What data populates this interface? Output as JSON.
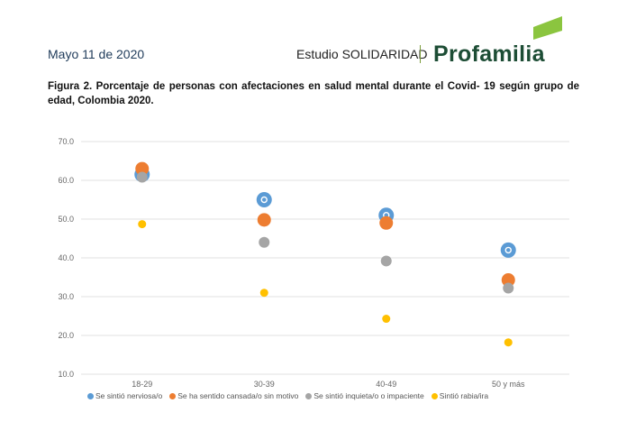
{
  "header": {
    "date": "Mayo 11 de 2020",
    "study": "Estudio SOLIDARIDAD",
    "logo": "Profamilia"
  },
  "caption": "Figura 2. Porcentaje de personas con afectaciones en salud mental durante el Covid- 19 según grupo de edad, Colombia 2020.",
  "colors": {
    "logo_green": "#1d4d35",
    "logo_mark": "#8bc53f"
  },
  "chart_data": {
    "type": "scatter",
    "title": "",
    "xlabel": "",
    "ylabel": "",
    "categories": [
      "18-29",
      "30-39",
      "40-49",
      "50 y más"
    ],
    "ylim": [
      10,
      70
    ],
    "yticks": [
      "10.0",
      "20.0",
      "30.0",
      "40.0",
      "50.0",
      "60.0",
      "70.0"
    ],
    "grid": true,
    "legend_position": "bottom",
    "series": [
      {
        "name": "Se sintió nerviosa/o",
        "color": "#5b9bd5",
        "marker": "ring",
        "values": [
          61.5,
          55.0,
          51.0,
          42.0
        ]
      },
      {
        "name": "Se ha sentido cansada/o sin motivo",
        "color": "#ed7d31",
        "marker": "large",
        "values": [
          63.0,
          49.8,
          49.0,
          34.3
        ]
      },
      {
        "name": "Se sintió inquieta/o o impaciente",
        "color": "#a5a5a5",
        "marker": "medium",
        "values": [
          60.8,
          44.0,
          39.2,
          32.2
        ]
      },
      {
        "name": "Sintió rabia/ira",
        "color": "#ffc000",
        "marker": "small",
        "values": [
          48.7,
          31.0,
          24.3,
          18.2
        ]
      }
    ]
  }
}
